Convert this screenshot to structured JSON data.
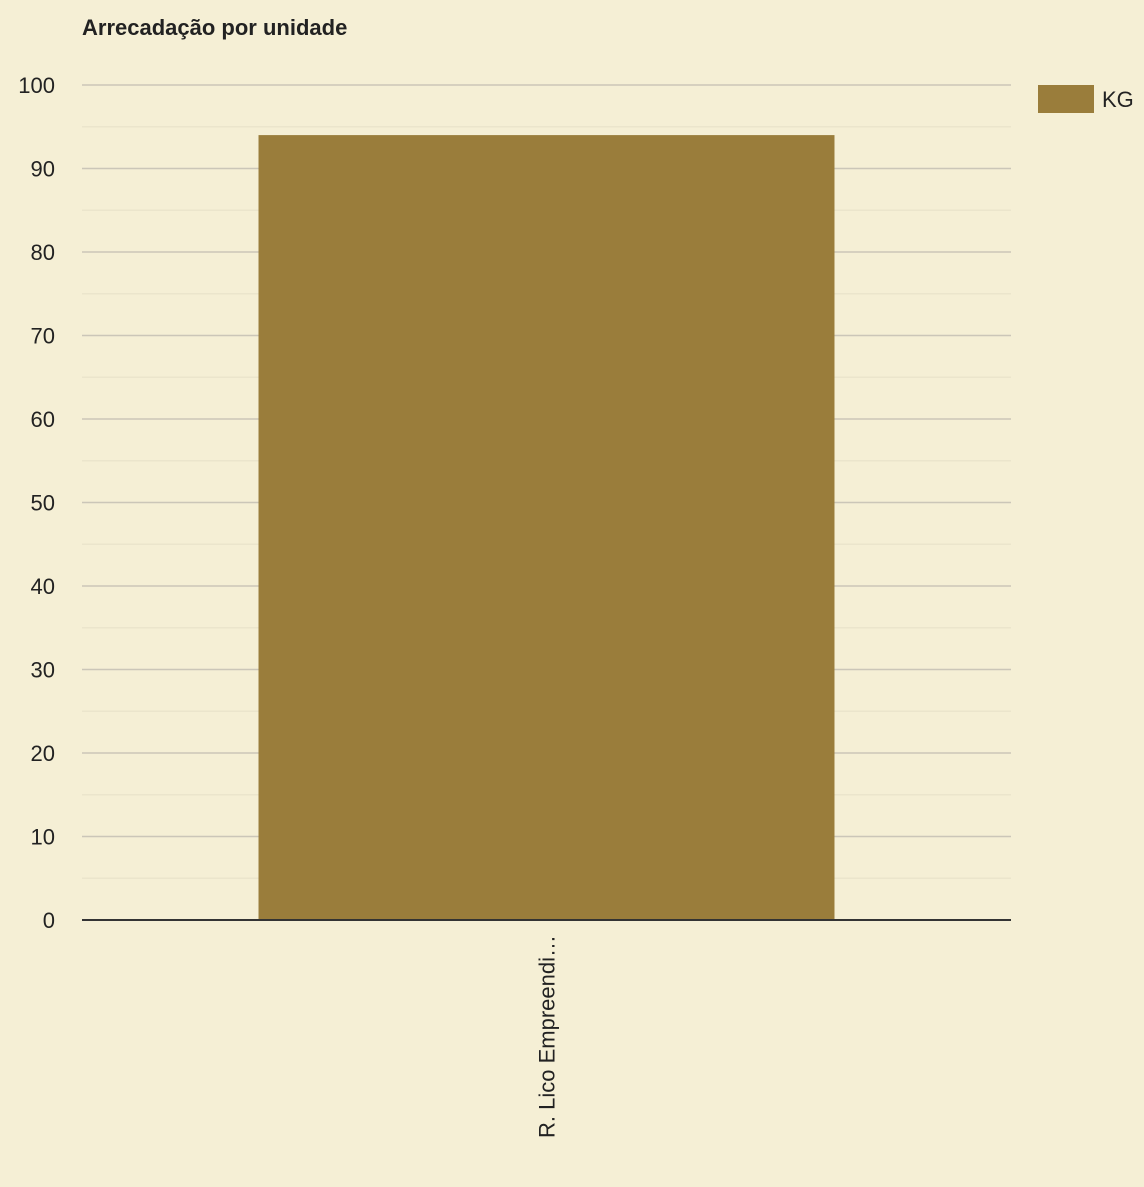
{
  "chart_data": {
    "type": "bar",
    "title": "Arrecadação por unidade",
    "categories": [
      "R. Lico Empreendi…"
    ],
    "series": [
      {
        "name": "KG",
        "values": [
          94
        ]
      }
    ],
    "ylim": [
      0,
      100
    ],
    "yticks": [
      0,
      10,
      20,
      30,
      40,
      50,
      60,
      70,
      80,
      90,
      100
    ],
    "xlabel": "",
    "ylabel": "",
    "grid": true,
    "legend_position": "top-right",
    "colors": {
      "background": "#f5efd5",
      "bar": "#9a7d3b",
      "gridline": "#cbc6b8",
      "minor_gridline": "#ebe5cc",
      "axis": "#333333",
      "text": "#222222"
    }
  }
}
